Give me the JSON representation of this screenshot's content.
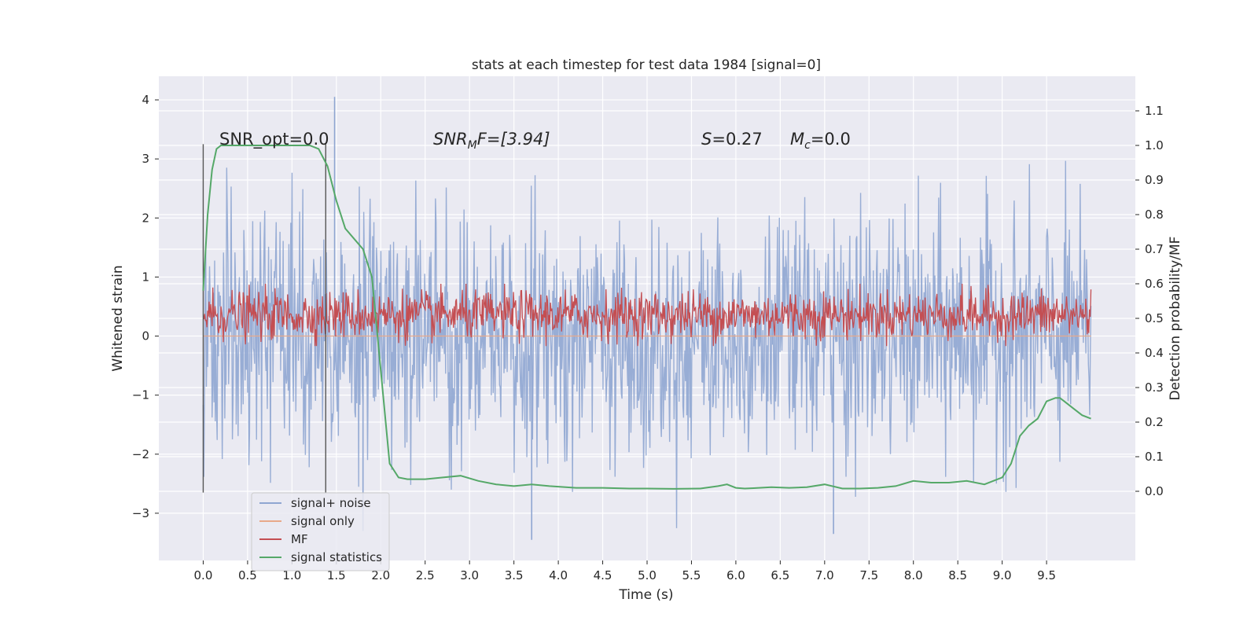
{
  "chart_data": {
    "type": "line",
    "title": "stats at each timestep for test data 1984 [signal=0]",
    "xlabel": "Time (s)",
    "ylabel_left": "Whitened strain",
    "ylabel_right": "Detection probability/MF",
    "xlim": [
      -0.5,
      10.5
    ],
    "ylim_left": [
      -3.8,
      4.4
    ],
    "ylim_right": [
      -0.2,
      1.2
    ],
    "x_ticks": [
      "0.0",
      "0.5",
      "1.0",
      "1.5",
      "2.0",
      "2.5",
      "3.0",
      "3.5",
      "4.0",
      "4.5",
      "5.0",
      "5.5",
      "6.0",
      "6.5",
      "7.0",
      "7.5",
      "8.0",
      "8.5",
      "9.0",
      "9.5"
    ],
    "y_ticks_left": [
      "−3",
      "−2",
      "−1",
      "0",
      "1",
      "2",
      "3",
      "4"
    ],
    "y_ticks_right": [
      "0.0",
      "0.1",
      "0.2",
      "0.3",
      "0.4",
      "0.5",
      "0.6",
      "0.7",
      "0.8",
      "0.9",
      "1.0",
      "1.1"
    ],
    "grid": true,
    "legend_position": "lower-left",
    "annotations": {
      "snr_opt": "SNR_opt=0.0",
      "snr_mf_base": "SNR",
      "snr_mf_sub": "M",
      "snr_mf_rest": "F=[3.94]",
      "s_var": "S",
      "s_val": "=0.27",
      "mc_var": "M",
      "mc_sub": "c",
      "mc_val": "=0.0"
    },
    "vertical_lines_x": [
      0.0,
      1.38
    ],
    "series": [
      {
        "name": "signal+ noise",
        "color": "#8fa6d1",
        "axis": "left",
        "x_range": [
          0.0,
          10.0
        ],
        "envelope_mean": 0.0,
        "envelope_spread": 1.0,
        "extremes": [
          {
            "x": 1.48,
            "y": 4.05
          },
          {
            "x": 3.7,
            "y": -3.45
          },
          {
            "x": 7.1,
            "y": -3.35
          },
          {
            "x": 1.8,
            "y": -3.3
          }
        ]
      },
      {
        "name": "signal only",
        "color": "#e8a98a",
        "axis": "left",
        "x": [
          0.0,
          10.0
        ],
        "y": [
          0.0,
          0.0
        ]
      },
      {
        "name": "MF",
        "color": "#c44e52",
        "axis": "right",
        "x_range": [
          0.0,
          10.0
        ],
        "band": [
          0.44,
          0.58
        ]
      },
      {
        "name": "signal statistics",
        "color": "#55a868",
        "axis": "right",
        "x": [
          0.0,
          0.05,
          0.1,
          0.15,
          0.2,
          0.3,
          0.5,
          0.8,
          1.0,
          1.2,
          1.3,
          1.4,
          1.5,
          1.6,
          1.7,
          1.8,
          1.9,
          2.0,
          2.1,
          2.2,
          2.3,
          2.5,
          2.7,
          2.9,
          3.1,
          3.3,
          3.5,
          3.7,
          3.9,
          4.2,
          4.5,
          4.8,
          5.0,
          5.3,
          5.6,
          5.8,
          5.9,
          6.0,
          6.1,
          6.2,
          6.4,
          6.6,
          6.8,
          7.0,
          7.2,
          7.4,
          7.6,
          7.8,
          8.0,
          8.2,
          8.4,
          8.6,
          8.8,
          9.0,
          9.1,
          9.2,
          9.3,
          9.4,
          9.5,
          9.6,
          9.65,
          9.7,
          9.8,
          9.9,
          10.0
        ],
        "y": [
          0.58,
          0.8,
          0.93,
          0.99,
          1.0,
          1.0,
          1.0,
          1.0,
          1.0,
          1.0,
          0.99,
          0.94,
          0.84,
          0.76,
          0.73,
          0.7,
          0.62,
          0.35,
          0.08,
          0.04,
          0.035,
          0.035,
          0.04,
          0.045,
          0.03,
          0.02,
          0.015,
          0.02,
          0.015,
          0.01,
          0.01,
          0.008,
          0.008,
          0.007,
          0.008,
          0.015,
          0.02,
          0.01,
          0.008,
          0.009,
          0.012,
          0.01,
          0.012,
          0.02,
          0.008,
          0.008,
          0.01,
          0.015,
          0.03,
          0.025,
          0.025,
          0.03,
          0.02,
          0.04,
          0.08,
          0.16,
          0.19,
          0.21,
          0.26,
          0.27,
          0.27,
          0.26,
          0.24,
          0.22,
          0.21
        ]
      }
    ]
  }
}
